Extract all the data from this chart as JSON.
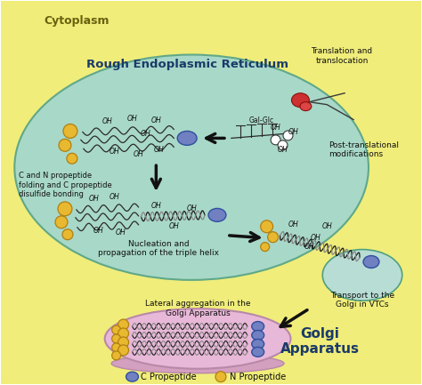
{
  "bg_outer": "#f0ed7a",
  "bg_rer": "#a8d8c8",
  "bg_golgi_body": "#e8b8d8",
  "bg_golgi_shadow": "#d4a0c0",
  "bg_vtc": "#b8ddd4",
  "cytoplasm_label": "Cytoplasm",
  "rer_label": "Rough Endoplasmic Reticulum",
  "golgi_label": "Golgi\nApparatus",
  "translation_label": "Translation and\ntranslocation",
  "post_trans_label": "Post-translational\nmodifications",
  "cn_label": "C and N propeptide\nfolding and C propeptide\ndisulfide bonding",
  "nucleation_label": "Nucleation and\npropagation of the triple helix",
  "transport_label": "Transport to the\nGolgi in VTCs",
  "lateral_label": "Lateral aggregation in the\nGolgi Apparatus",
  "legend_c": "C Propeptide",
  "legend_n": "N Propeptide",
  "c_propeptide_color": "#7080c0",
  "n_propeptide_color": "#e8b830",
  "ribosome_color": "#cc3030",
  "arrow_color": "#111111",
  "gal_glc_label": "Gal-Glc"
}
